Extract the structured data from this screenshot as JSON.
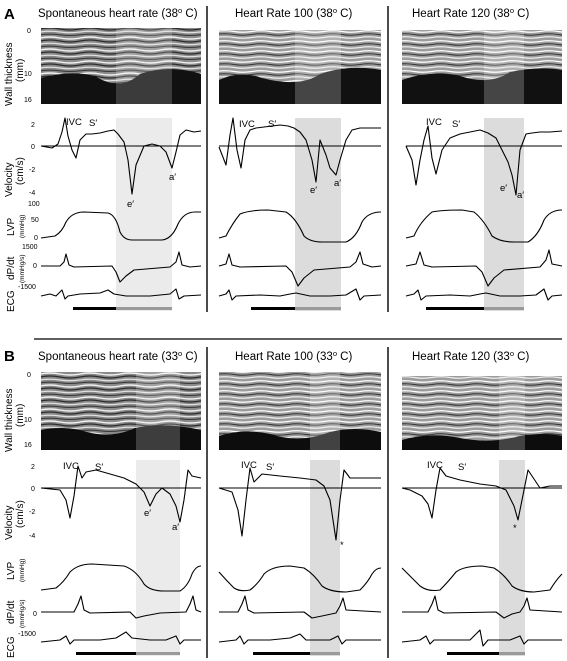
{
  "panels": [
    {
      "letter": "A",
      "columns": [
        {
          "title": "Spontaneous heart rate (38",
          "temp_sup": "o",
          "temp_suffix": " C)"
        },
        {
          "title": "Heart Rate 100 (38",
          "temp_sup": "o",
          "temp_suffix": " C)"
        },
        {
          "title": "Heart Rate 120 (38",
          "temp_sup": "o",
          "temp_suffix": " C)"
        }
      ],
      "velocity_annotations": [
        {
          "ivc": "IVC",
          "s": "S′",
          "e": "e′",
          "a": "a′"
        },
        {
          "ivc": "IVC",
          "s": "S′",
          "e": "e′",
          "a": "a′"
        },
        {
          "ivc": "IVC",
          "s": "S′",
          "e": "e′",
          "a": "a′"
        }
      ]
    },
    {
      "letter": "B",
      "columns": [
        {
          "title": "Spontaneous heart rate (33",
          "temp_sup": "o",
          "temp_suffix": " C)"
        },
        {
          "title": "Heart Rate 100 (33",
          "temp_sup": "o",
          "temp_suffix": " C)"
        },
        {
          "title": "Heart Rate 120 (33",
          "temp_sup": "o",
          "temp_suffix": " C)"
        }
      ],
      "velocity_annotations": [
        {
          "ivc": "IVC",
          "s": "S′",
          "e": "e′",
          "a": "a′"
        },
        {
          "ivc": "IVC",
          "s": "S′",
          "star": "*"
        },
        {
          "ivc": "IVC",
          "s": "S′",
          "star": "*"
        }
      ]
    }
  ],
  "row_labels": {
    "wall_thickness": "Wall thickness",
    "wall_thickness_unit": "(mm)",
    "velocity": "Velocity",
    "velocity_unit": "(cm/s)",
    "lvp": "LVP",
    "lvp_unit": "(mmHg)",
    "dpdt": "dP/dt",
    "dpdt_unit": "(mmHg/s)",
    "ecg": "ECG"
  },
  "ticks": {
    "wall": [
      "0",
      "10",
      "16"
    ],
    "velocity": [
      "2",
      "0",
      "-2",
      "-4"
    ],
    "lvp": [
      "100",
      "50",
      "0"
    ],
    "dpdt": [
      "1500",
      "0",
      "-1500"
    ]
  },
  "colors": {
    "shade_light": "#ebebeb",
    "shade_dark": "#dcdcdc",
    "bar_black": "#000000",
    "bar_gray": "#9a9a9a"
  }
}
